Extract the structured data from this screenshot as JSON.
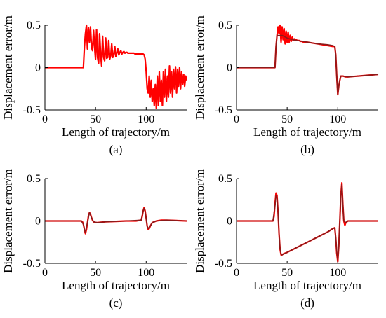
{
  "chart_data": [
    {
      "type": "line",
      "panel_label": "(a)",
      "xlabel": "Length of trajectory/m",
      "ylabel": "Displacement error/m",
      "xlim": [
        0,
        140
      ],
      "ylim": [
        -0.5,
        0.5
      ],
      "xticks": [
        "0",
        "50",
        "100"
      ],
      "yticks": [
        "0.5",
        "0",
        "-0.5"
      ],
      "grid": false,
      "series": [
        {
          "color": "#ff0000",
          "x": [
            0,
            38,
            39,
            40,
            41,
            42,
            43,
            44,
            45,
            46,
            47,
            48,
            49,
            50,
            51,
            52,
            53,
            54,
            55,
            56,
            57,
            58,
            59,
            60,
            61,
            62,
            63,
            64,
            65,
            66,
            67,
            68,
            69,
            70,
            71,
            72,
            73,
            74,
            75,
            76,
            77,
            78,
            79,
            80,
            81,
            82,
            83,
            84,
            85,
            86,
            87,
            88,
            89,
            90,
            91,
            92,
            93,
            94,
            95,
            96,
            97,
            98,
            99,
            100,
            101,
            102,
            103,
            104,
            105,
            106,
            107,
            108,
            109,
            110,
            111,
            112,
            113,
            114,
            115,
            116,
            117,
            118,
            119,
            120,
            121,
            122,
            123,
            124,
            125,
            126,
            127,
            128,
            129,
            130,
            131,
            132,
            133,
            134,
            135,
            136,
            137,
            138,
            139,
            140
          ],
          "y": [
            0,
            0,
            0.25,
            0.4,
            0.5,
            0.22,
            0.47,
            0.3,
            0.48,
            0.24,
            0.2,
            0.44,
            0.25,
            0.1,
            0.45,
            0.12,
            0.05,
            0.4,
            0.15,
            0.02,
            0.37,
            0.12,
            0.08,
            0.35,
            0.11,
            0.12,
            0.32,
            0.1,
            0.14,
            0.28,
            0.12,
            0.15,
            0.25,
            0.13,
            0.17,
            0.22,
            0.15,
            0.18,
            0.2,
            0.16,
            0.18,
            0.19,
            0.17,
            0.18,
            0.18,
            0.17,
            0.17,
            0.17,
            0.17,
            0.17,
            0.17,
            0.17,
            0.16,
            0.16,
            0.16,
            0.16,
            0.16,
            0.16,
            0.16,
            0.16,
            0.16,
            0.15,
            0.1,
            -0.05,
            -0.25,
            -0.3,
            -0.1,
            -0.35,
            -0.15,
            -0.4,
            -0.25,
            -0.45,
            -0.2,
            -0.48,
            -0.1,
            -0.45,
            -0.05,
            -0.4,
            -0.15,
            -0.45,
            -0.05,
            -0.35,
            -0.02,
            -0.4,
            -0.1,
            -0.35,
            0.02,
            -0.3,
            -0.05,
            -0.35,
            -0.02,
            -0.25,
            0.01,
            -0.3,
            -0.02,
            -0.22,
            0,
            -0.25,
            -0.05,
            -0.2,
            -0.08,
            -0.22,
            -0.1,
            -0.15
          ]
        }
      ]
    },
    {
      "type": "line",
      "panel_label": "(b)",
      "xlabel": "Length of trajectory/m",
      "ylabel": "Displacement error/m",
      "xlim": [
        0,
        140
      ],
      "ylim": [
        -0.5,
        0.5
      ],
      "xticks": [
        "0",
        "50",
        "100"
      ],
      "yticks": [
        "0.5",
        "0",
        "-0.5"
      ],
      "grid": false,
      "series": [
        {
          "color": "#ff0000",
          "x": [
            0,
            38,
            39,
            40,
            41,
            42,
            43,
            44,
            45,
            46,
            47,
            48,
            49,
            50,
            51,
            52,
            53,
            54,
            55,
            56,
            57,
            58,
            59,
            60,
            61,
            62,
            63,
            64,
            65,
            66,
            67,
            68,
            70,
            75,
            80,
            85,
            90,
            95,
            97,
            98,
            99,
            100,
            101,
            102,
            103,
            105,
            108,
            110,
            120,
            130,
            140
          ],
          "y": [
            0,
            0,
            0.25,
            0.38,
            0.48,
            0.4,
            0.5,
            0.3,
            0.48,
            0.33,
            0.46,
            0.28,
            0.43,
            0.3,
            0.42,
            0.3,
            0.38,
            0.31,
            0.36,
            0.32,
            0.34,
            0.32,
            0.33,
            0.32,
            0.32,
            0.32,
            0.31,
            0.31,
            0.31,
            0.3,
            0.3,
            0.3,
            0.3,
            0.29,
            0.28,
            0.27,
            0.26,
            0.25,
            0.25,
            0.15,
            -0.1,
            -0.32,
            -0.22,
            -0.15,
            -0.1,
            -0.1,
            -0.11,
            -0.11,
            -0.1,
            -0.09,
            -0.08
          ]
        },
        {
          "color": "#8b1a1a",
          "x": [
            0,
            38,
            39,
            40,
            45,
            50,
            55,
            60,
            65,
            70,
            80,
            90,
            95,
            97,
            98,
            99,
            100,
            101,
            102,
            103,
            105,
            110,
            120,
            130,
            140
          ],
          "y": [
            0,
            0,
            0.25,
            0.38,
            0.38,
            0.35,
            0.33,
            0.32,
            0.31,
            0.3,
            0.28,
            0.27,
            0.26,
            0.25,
            0.15,
            -0.1,
            -0.32,
            -0.22,
            -0.15,
            -0.1,
            -0.1,
            -0.11,
            -0.1,
            -0.09,
            -0.08
          ]
        }
      ]
    },
    {
      "type": "line",
      "panel_label": "(c)",
      "xlabel": "Length of trajectory/m",
      "ylabel": "Displacement error/m",
      "xlim": [
        0,
        140
      ],
      "ylim": [
        -0.5,
        0.5
      ],
      "xticks": [
        "0",
        "50",
        "100"
      ],
      "yticks": [
        "0.5",
        "0",
        "-0.5"
      ],
      "grid": false,
      "series": [
        {
          "color": "#ff0000",
          "x": [
            0,
            36,
            37,
            38,
            39,
            40,
            41,
            42,
            43,
            44,
            45,
            46,
            47,
            48,
            50,
            52,
            55,
            60,
            70,
            80,
            90,
            95,
            96,
            97,
            98,
            99,
            100,
            101,
            102,
            103,
            104,
            105,
            106,
            108,
            110,
            115,
            120,
            130,
            140
          ],
          "y": [
            0,
            0,
            -0.01,
            -0.04,
            -0.1,
            -0.15,
            -0.1,
            -0.02,
            0.06,
            0.1,
            0.08,
            0.04,
            0.01,
            -0.01,
            -0.02,
            -0.02,
            -0.015,
            -0.01,
            -0.005,
            0,
            0,
            0.01,
            0.05,
            0.12,
            0.16,
            0.12,
            0.03,
            -0.06,
            -0.1,
            -0.09,
            -0.06,
            -0.04,
            -0.02,
            -0.01,
            0,
            0.01,
            0.01,
            0.005,
            0
          ]
        },
        {
          "color": "#8b1a1a",
          "x": [
            0,
            36,
            38,
            40,
            42,
            44,
            46,
            48,
            52,
            60,
            80,
            95,
            97,
            98,
            99,
            100,
            101,
            102,
            104,
            106,
            110,
            120,
            140
          ],
          "y": [
            0,
            0,
            -0.04,
            -0.14,
            -0.02,
            0.1,
            0.04,
            -0.01,
            -0.02,
            -0.01,
            0,
            0.01,
            0.12,
            0.15,
            0.11,
            0.03,
            -0.06,
            -0.09,
            -0.06,
            -0.02,
            0,
            0.01,
            0
          ]
        }
      ]
    },
    {
      "type": "line",
      "panel_label": "(d)",
      "xlabel": "Length of trajectory/m",
      "ylabel": "Displacement error/m",
      "xlim": [
        0,
        140
      ],
      "ylim": [
        -0.5,
        0.5
      ],
      "xticks": [
        "0",
        "50",
        "100"
      ],
      "yticks": [
        "0.5",
        "0",
        "-0.5"
      ],
      "grid": false,
      "series": [
        {
          "color": "#ff0000",
          "x": [
            0,
            36,
            37,
            38,
            39,
            40,
            41,
            42,
            43,
            44,
            45,
            46,
            50,
            60,
            70,
            80,
            90,
            95,
            97,
            98,
            99,
            100,
            101,
            102,
            103,
            104,
            105,
            106,
            107,
            108,
            110,
            140
          ],
          "y": [
            0,
            0,
            0.05,
            0.2,
            0.33,
            0.3,
            0.1,
            -0.15,
            -0.33,
            -0.4,
            -0.4,
            -0.39,
            -0.37,
            -0.31,
            -0.25,
            -0.19,
            -0.13,
            -0.09,
            -0.08,
            -0.2,
            -0.38,
            -0.48,
            -0.3,
            0.0,
            0.3,
            0.45,
            0.2,
            0.0,
            -0.05,
            -0.02,
            0,
            0
          ]
        },
        {
          "color": "#8b1a1a",
          "x": [
            0,
            36,
            38,
            39,
            40,
            41,
            42,
            43,
            44,
            45,
            50,
            60,
            70,
            80,
            90,
            95,
            97,
            98,
            99,
            100,
            101,
            102,
            103,
            104,
            105,
            106,
            108,
            110,
            140
          ],
          "y": [
            0,
            0,
            0.18,
            0.3,
            0.28,
            0.1,
            -0.15,
            -0.32,
            -0.39,
            -0.4,
            -0.37,
            -0.31,
            -0.25,
            -0.19,
            -0.13,
            -0.09,
            -0.08,
            -0.2,
            -0.36,
            -0.46,
            -0.3,
            0.0,
            0.28,
            0.43,
            0.2,
            0.0,
            -0.02,
            0,
            0
          ]
        }
      ]
    }
  ]
}
